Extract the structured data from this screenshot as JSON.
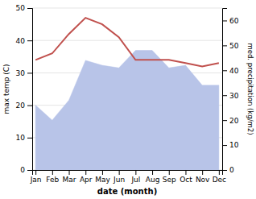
{
  "chart_data": {
    "type": "line",
    "categories": [
      "Jan",
      "Feb",
      "Mar",
      "Apr",
      "May",
      "Jun",
      "Jul",
      "Aug",
      "Sep",
      "Oct",
      "Nov",
      "Dec"
    ],
    "series": [
      {
        "type": "area",
        "color": "#b8c4e8",
        "axis": "y2",
        "values": [
          26,
          20,
          28,
          44,
          42,
          41,
          48,
          48,
          41,
          42,
          34,
          34
        ]
      },
      {
        "type": "line",
        "color": "#c0504d",
        "values": [
          34,
          36,
          42,
          47,
          45,
          41,
          34,
          34,
          34,
          33,
          32,
          33
        ]
      }
    ],
    "xlabel": "date (month)",
    "ylabel": "max temp (C)",
    "y2label": "med. precipitation (kg/m2)",
    "ylim": [
      0,
      50
    ],
    "yticks": [
      0,
      10,
      20,
      30,
      40,
      50
    ],
    "y2lim": [
      0,
      65
    ],
    "y2ticks": [
      0,
      10,
      20,
      30,
      40,
      50,
      60
    ],
    "grid": true
  }
}
